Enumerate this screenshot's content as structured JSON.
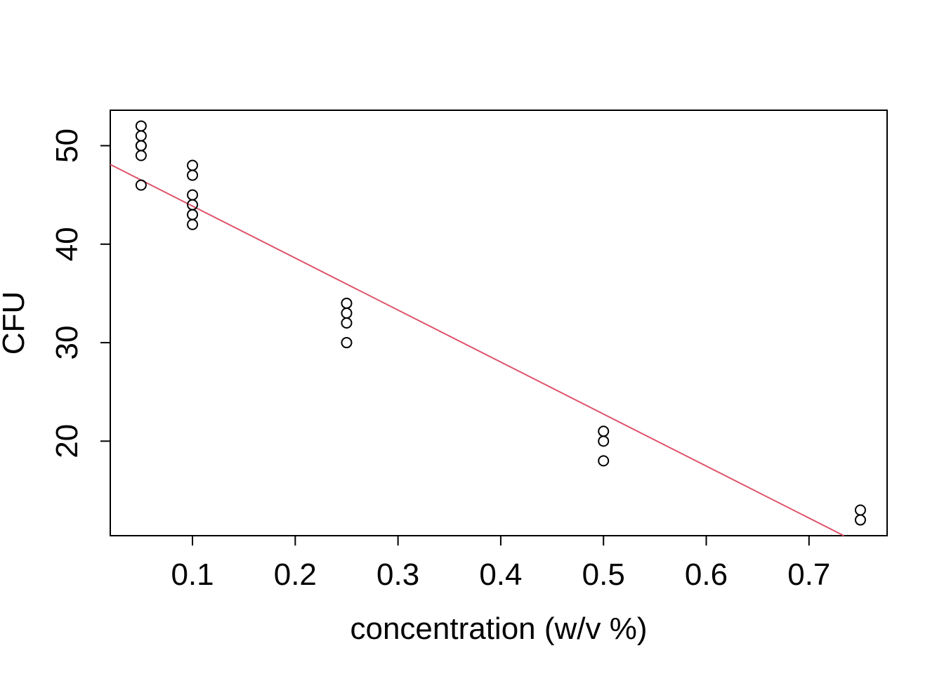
{
  "chart_data": {
    "type": "scatter",
    "title": "",
    "xlabel": "concentration (w/v %)",
    "ylabel": "CFU",
    "xlim": [
      0.02,
      0.776
    ],
    "ylim": [
      10.4,
      53.6
    ],
    "x_ticks": [
      0.1,
      0.2,
      0.3,
      0.4,
      0.5,
      0.6,
      0.7
    ],
    "x_tick_labels": [
      "0.1",
      "0.2",
      "0.3",
      "0.4",
      "0.5",
      "0.6",
      "0.7"
    ],
    "y_ticks": [
      20,
      30,
      40,
      50
    ],
    "y_tick_labels": [
      "20",
      "30",
      "40",
      "50"
    ],
    "grid": false,
    "points": [
      {
        "x": 0.05,
        "y": 52
      },
      {
        "x": 0.05,
        "y": 51
      },
      {
        "x": 0.05,
        "y": 50
      },
      {
        "x": 0.05,
        "y": 50
      },
      {
        "x": 0.05,
        "y": 49
      },
      {
        "x": 0.05,
        "y": 46
      },
      {
        "x": 0.1,
        "y": 48
      },
      {
        "x": 0.1,
        "y": 47
      },
      {
        "x": 0.1,
        "y": 45
      },
      {
        "x": 0.1,
        "y": 44
      },
      {
        "x": 0.1,
        "y": 43
      },
      {
        "x": 0.1,
        "y": 42
      },
      {
        "x": 0.25,
        "y": 34
      },
      {
        "x": 0.25,
        "y": 33
      },
      {
        "x": 0.25,
        "y": 32
      },
      {
        "x": 0.25,
        "y": 30
      },
      {
        "x": 0.5,
        "y": 21
      },
      {
        "x": 0.5,
        "y": 20
      },
      {
        "x": 0.5,
        "y": 18
      },
      {
        "x": 0.75,
        "y": 13
      },
      {
        "x": 0.75,
        "y": 12
      }
    ],
    "regression_line": {
      "intercept": 49.15,
      "slope": -52.8,
      "color": "#DF536B"
    },
    "point_color": "#000000"
  }
}
